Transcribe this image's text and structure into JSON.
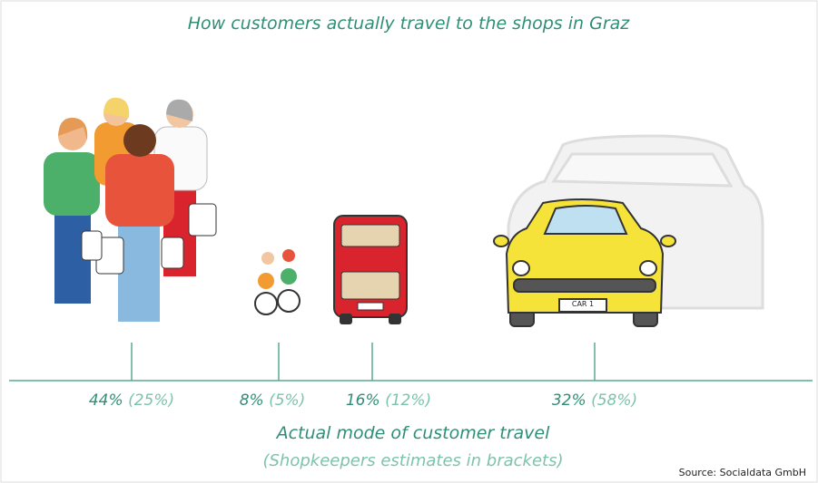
{
  "title": "How customers actually travel to the shops in Graz",
  "modes": [
    {
      "actual": "44%",
      "estimate": "(25%)"
    },
    {
      "actual": "8%",
      "estimate": "(5%)"
    },
    {
      "actual": "16%",
      "estimate": "(12%)"
    },
    {
      "actual": "32%",
      "estimate": "(58%)"
    }
  ],
  "caption": {
    "line1": "Actual mode of customer travel",
    "line2": "(Shopkeepers estimates in brackets)"
  },
  "bus_sign": "",
  "car_plate": "CAR 1",
  "source": "Source: Socialdata GmbH"
}
